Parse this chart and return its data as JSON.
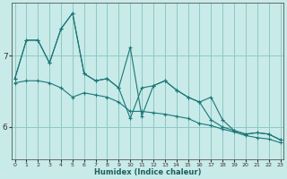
{
  "xlabel": "Humidex (Indice chaleur)",
  "background_color": "#c8eae8",
  "grid_color": "#8ec8c4",
  "line_color": "#1a7878",
  "xlim": [
    -0.3,
    23.3
  ],
  "ylim": [
    5.55,
    7.75
  ],
  "yticks": [
    6,
    7
  ],
  "xticks": [
    0,
    1,
    2,
    3,
    4,
    5,
    6,
    7,
    8,
    9,
    10,
    11,
    12,
    13,
    14,
    15,
    16,
    17,
    18,
    19,
    20,
    21,
    22,
    23
  ],
  "series1": [
    6.68,
    7.22,
    7.22,
    6.9,
    7.38,
    7.6,
    6.75,
    6.65,
    6.68,
    6.55,
    7.12,
    6.15,
    6.58,
    6.65,
    6.52,
    6.42,
    6.35,
    6.42,
    6.1,
    5.95,
    5.9,
    5.92,
    5.9,
    5.82
  ],
  "series2": [
    6.68,
    7.22,
    7.22,
    6.9,
    7.38,
    7.6,
    6.75,
    6.65,
    6.68,
    6.55,
    6.12,
    6.55,
    6.58,
    6.65,
    6.52,
    6.42,
    6.35,
    6.1,
    6.0,
    5.95,
    5.9,
    5.92,
    5.9,
    5.82
  ],
  "series3": [
    6.62,
    6.65,
    6.65,
    6.62,
    6.55,
    6.42,
    6.48,
    6.45,
    6.42,
    6.35,
    6.22,
    6.22,
    6.2,
    6.18,
    6.15,
    6.12,
    6.05,
    6.02,
    5.97,
    5.93,
    5.88,
    5.85,
    5.83,
    5.78
  ]
}
